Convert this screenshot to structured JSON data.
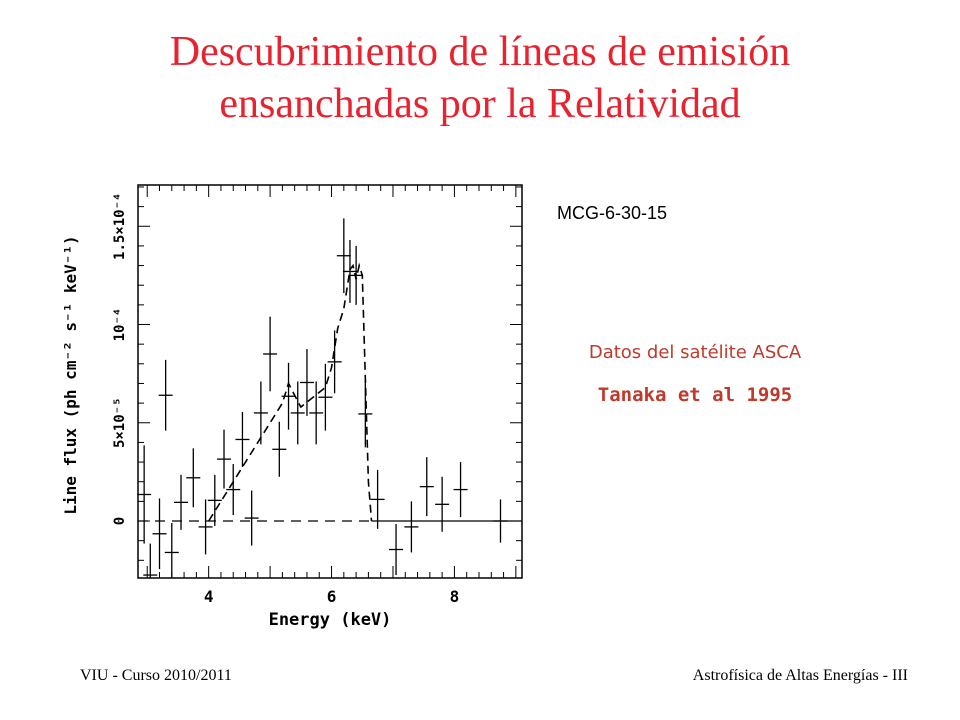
{
  "slide": {
    "title_line1": "Descubrimiento de líneas de emisión",
    "title_line2": "ensanchadas por la Relatividad",
    "target_label": "MCG-6-30-15",
    "data_source": "Datos del satélite ASCA",
    "reference": "Tanaka et al 1995",
    "footer_left": "VIU - Curso 2010/2011",
    "footer_right": "Astrofísica de Altas Energías - III"
  },
  "chart_data": {
    "type": "scatter",
    "xlabel": "Energy (keV)",
    "ylabel": "Line flux (ph cm⁻² s⁻¹ keV⁻¹)",
    "xlim": [
      2.85,
      9.1
    ],
    "ylim": [
      -2.9e-05,
      0.000171
    ],
    "x_ticks": [
      4,
      6,
      8
    ],
    "y_ticks": [
      {
        "value": 0,
        "label": "0"
      },
      {
        "value": 5e-05,
        "label": "5×10⁻⁵"
      },
      {
        "value": 0.0001,
        "label": "10⁻⁴"
      },
      {
        "value": 0.00015,
        "label": "1.5×10⁻⁴"
      }
    ],
    "grid": false,
    "points": [
      {
        "x": 2.95,
        "y": 1.35e-05,
        "err": 2.5e-05
      },
      {
        "x": 3.05,
        "y": -2.75e-05,
        "err": 1.6e-05
      },
      {
        "x": 3.2,
        "y": -6.5e-06,
        "err": 1.8e-05
      },
      {
        "x": 3.3,
        "y": 6.4e-05,
        "err": 1.8e-05
      },
      {
        "x": 3.4,
        "y": -1.6e-05,
        "err": 1.5e-05
      },
      {
        "x": 3.55,
        "y": 9.5e-06,
        "err": 1.4e-05
      },
      {
        "x": 3.75,
        "y": 2.2e-05,
        "err": 1.5e-05
      },
      {
        "x": 3.95,
        "y": -3e-06,
        "err": 1.4e-05
      },
      {
        "x": 4.1,
        "y": 1.05e-05,
        "err": 1.3e-05
      },
      {
        "x": 4.25,
        "y": 3.15e-05,
        "err": 1.5e-05
      },
      {
        "x": 4.4,
        "y": 1.6e-05,
        "err": 1.3e-05
      },
      {
        "x": 4.55,
        "y": 4.15e-05,
        "err": 1.4e-05
      },
      {
        "x": 4.7,
        "y": 1.5e-06,
        "err": 1.4e-05
      },
      {
        "x": 4.85,
        "y": 5.5e-05,
        "err": 1.6e-05
      },
      {
        "x": 5.0,
        "y": 8.5e-05,
        "err": 1.9e-05
      },
      {
        "x": 5.15,
        "y": 3.65e-05,
        "err": 1.4e-05
      },
      {
        "x": 5.3,
        "y": 6.35e-05,
        "err": 1.7e-05
      },
      {
        "x": 5.45,
        "y": 5.5e-05,
        "err": 1.6e-05
      },
      {
        "x": 5.6,
        "y": 7.05e-05,
        "err": 1.7e-05
      },
      {
        "x": 5.75,
        "y": 5.5e-05,
        "err": 1.6e-05
      },
      {
        "x": 5.9,
        "y": 6.3e-05,
        "err": 1.7e-05
      },
      {
        "x": 6.05,
        "y": 8.1e-05,
        "err": 1.6e-05
      },
      {
        "x": 6.2,
        "y": 0.000135,
        "err": 1.9e-05
      },
      {
        "x": 6.3,
        "y": 0.000127,
        "err": 1.6e-05
      },
      {
        "x": 6.4,
        "y": 0.000125,
        "err": 1.5e-05
      },
      {
        "x": 6.55,
        "y": 5.45e-05,
        "err": 1.7e-05
      },
      {
        "x": 6.75,
        "y": 1.1e-05,
        "err": 1.5e-05
      },
      {
        "x": 7.05,
        "y": -1.45e-05,
        "err": 1.3e-05
      },
      {
        "x": 7.3,
        "y": -3e-06,
        "err": 1.3e-05
      },
      {
        "x": 7.55,
        "y": 1.75e-05,
        "err": 1.5e-05
      },
      {
        "x": 7.8,
        "y": 8.5e-06,
        "err": 1.4e-05
      },
      {
        "x": 8.1,
        "y": 1.6e-05,
        "err": 1.4e-05
      },
      {
        "x": 8.75,
        "y": 0,
        "err": 1.1e-05
      }
    ],
    "model_line": {
      "x": [
        4.0,
        4.5,
        5.0,
        5.2,
        5.3,
        5.5,
        5.9,
        6.0,
        6.1,
        6.2,
        6.3,
        6.35,
        6.4,
        6.45,
        6.5,
        6.6,
        6.65
      ],
      "y": [
        0,
        2.5e-05,
        5e-05,
        6e-05,
        7e-05,
        5.8e-05,
        6.8e-05,
        7.8e-05,
        9.8e-05,
        0.000108,
        0.000128,
        0.00013,
        0.000123,
        0.00013,
        0.000125,
        2e-05,
        0
      ]
    },
    "baseline": {
      "x": [
        2.85,
        6.65
      ],
      "y": 0
    },
    "zero_line": {
      "x": [
        6.65,
        9.1
      ],
      "y": 0
    }
  }
}
